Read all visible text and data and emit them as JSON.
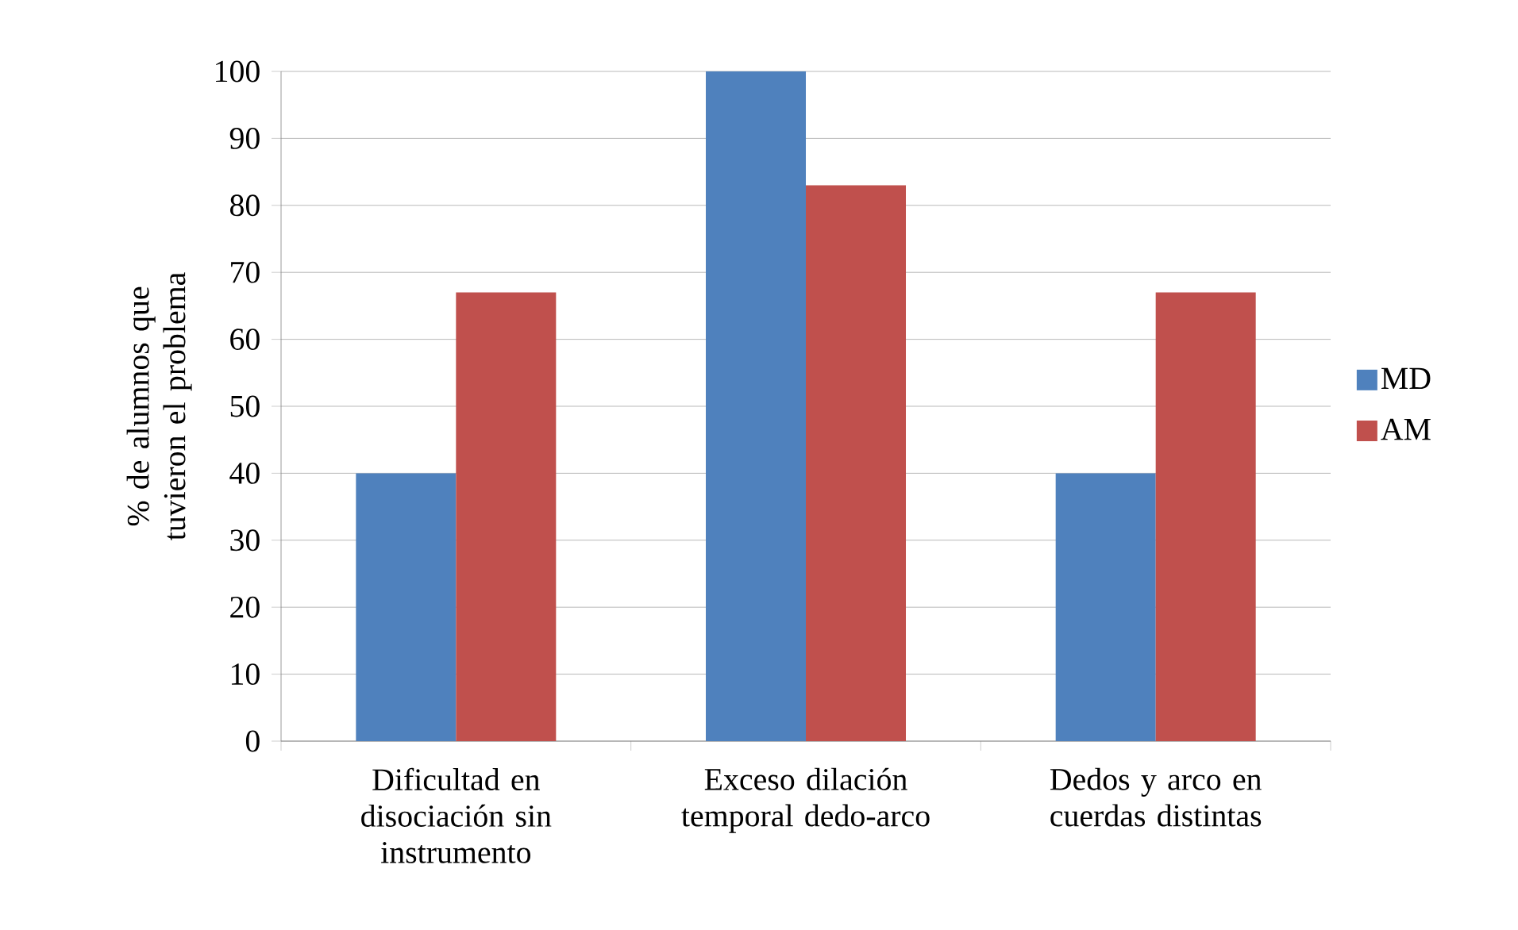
{
  "chart_data": {
    "type": "bar",
    "ylabel": "% de alumnos que tuvieron el problema",
    "categories": [
      "Dificultad en disociación sin instrumento",
      "Exceso dilación temporal dedo-arco",
      "Dedos y arco en cuerdas distintas"
    ],
    "series": [
      {
        "name": "MD",
        "color": "#4f81bd",
        "values": [
          40,
          100,
          40
        ]
      },
      {
        "name": "AM",
        "color": "#c0504d",
        "values": [
          67,
          83,
          67
        ]
      }
    ],
    "ylim": [
      0,
      100
    ],
    "yticks": [
      0,
      10,
      20,
      30,
      40,
      50,
      60,
      70,
      80,
      90,
      100
    ],
    "grid": "y",
    "legend": "right"
  }
}
